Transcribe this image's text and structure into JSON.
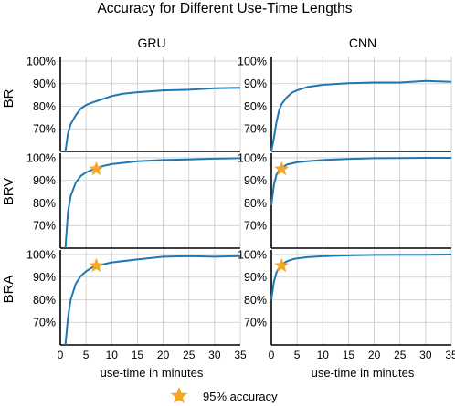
{
  "title": "Accuracy for Different Use-Time Lengths",
  "column_titles": [
    "GRU",
    "CNN"
  ],
  "row_labels": [
    "BR",
    "BRV",
    "BRA"
  ],
  "xlabel": "use-time in minutes",
  "legend": {
    "label": "95% accuracy",
    "marker": "star-icon"
  },
  "colors": {
    "line": "#1f77b4",
    "star": "#f5a623",
    "grid": "#c8c8c8"
  },
  "chart_data": {
    "type": "line",
    "layout": "3x2 grid of small multiples",
    "x_ticks": [
      0,
      5,
      10,
      15,
      20,
      25,
      30,
      35
    ],
    "x_tick_labels": [
      "0",
      "5",
      "10",
      "15",
      "20",
      "25",
      "30",
      "35"
    ],
    "y_ticks": [
      0.7,
      0.8,
      0.9,
      1.0
    ],
    "y_tick_labels": [
      "70%",
      "80%",
      "90%",
      "100%"
    ],
    "xlim": [
      0,
      35
    ],
    "ylim": [
      0.6,
      1.02
    ],
    "grid": true,
    "panels": [
      {
        "row": "BR",
        "model": "GRU",
        "x": [
          1,
          1.5,
          2,
          3,
          4,
          5,
          6,
          8,
          10,
          12,
          15,
          20,
          25,
          30,
          35
        ],
        "y": [
          0.6,
          0.68,
          0.72,
          0.76,
          0.79,
          0.805,
          0.815,
          0.83,
          0.845,
          0.855,
          0.862,
          0.87,
          0.873,
          0.88,
          0.882
        ],
        "star": null
      },
      {
        "row": "BR",
        "model": "CNN",
        "x": [
          0,
          0.5,
          1,
          1.5,
          2,
          3,
          4,
          5,
          7,
          10,
          15,
          20,
          25,
          30,
          35
        ],
        "y": [
          0.6,
          0.66,
          0.73,
          0.78,
          0.81,
          0.84,
          0.86,
          0.87,
          0.885,
          0.895,
          0.902,
          0.905,
          0.905,
          0.912,
          0.908
        ],
        "star": null
      },
      {
        "row": "BRV",
        "model": "GRU",
        "x": [
          1,
          1.5,
          2,
          3,
          4,
          5,
          6,
          7,
          8,
          10,
          15,
          20,
          25,
          30,
          35
        ],
        "y": [
          0.6,
          0.76,
          0.83,
          0.89,
          0.92,
          0.935,
          0.945,
          0.955,
          0.962,
          0.972,
          0.985,
          0.99,
          0.993,
          0.996,
          0.998
        ],
        "star": {
          "x": 7,
          "y": 0.95
        }
      },
      {
        "row": "BRV",
        "model": "CNN",
        "x": [
          0,
          0.5,
          1,
          1.5,
          2,
          3,
          4,
          5,
          7,
          10,
          15,
          20,
          25,
          30,
          35
        ],
        "y": [
          0.79,
          0.88,
          0.925,
          0.945,
          0.955,
          0.97,
          0.975,
          0.98,
          0.985,
          0.99,
          0.995,
          0.998,
          0.999,
          1.0,
          1.0
        ],
        "star": {
          "x": 2,
          "y": 0.95
        }
      },
      {
        "row": "BRA",
        "model": "GRU",
        "x": [
          1,
          1.5,
          2,
          3,
          4,
          5,
          6,
          7,
          8,
          10,
          15,
          20,
          25,
          30,
          35
        ],
        "y": [
          0.6,
          0.72,
          0.8,
          0.87,
          0.905,
          0.925,
          0.94,
          0.95,
          0.955,
          0.965,
          0.978,
          0.99,
          0.993,
          0.99,
          0.993
        ],
        "star": {
          "x": 7,
          "y": 0.95
        }
      },
      {
        "row": "BRA",
        "model": "CNN",
        "x": [
          0,
          0.5,
          1,
          1.5,
          2,
          3,
          4,
          5,
          7,
          10,
          15,
          20,
          25,
          30,
          35
        ],
        "y": [
          0.8,
          0.88,
          0.92,
          0.94,
          0.955,
          0.97,
          0.978,
          0.983,
          0.988,
          0.992,
          0.996,
          0.998,
          0.999,
          0.999,
          1.0
        ],
        "star": {
          "x": 2,
          "y": 0.95
        }
      }
    ]
  }
}
